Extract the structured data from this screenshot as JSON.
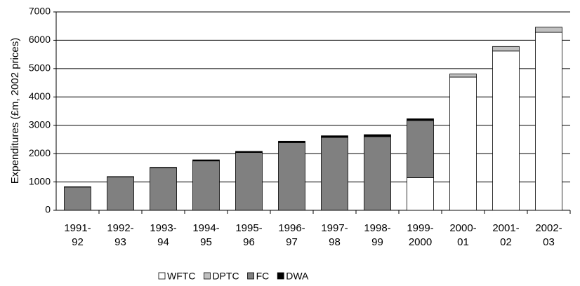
{
  "chart_data": {
    "type": "stacked-bar",
    "y_label": "Expenditures (£m, 2002 prices)",
    "categories": [
      "1991-\n92",
      "1992-\n93",
      "1993-\n94",
      "1994-\n95",
      "1995-\n96",
      "1996-\n97",
      "1997-\n98",
      "1998-\n99",
      "1999-\n2000",
      "2000-\n01",
      "2001-\n02",
      "2002-\n03"
    ],
    "series": [
      {
        "name": "WFTC",
        "color": "#ffffff",
        "values": [
          0,
          0,
          0,
          0,
          0,
          0,
          0,
          0,
          1150,
          4700,
          5620,
          6280
        ]
      },
      {
        "name": "DPTC",
        "color": "#c0c0c0",
        "values": [
          0,
          0,
          0,
          0,
          0,
          0,
          0,
          0,
          0,
          110,
          160,
          180
        ]
      },
      {
        "name": "FC",
        "color": "#808080",
        "values": [
          820,
          1180,
          1500,
          1740,
          2040,
          2390,
          2570,
          2600,
          2020,
          0,
          0,
          0
        ]
      },
      {
        "name": "DWA",
        "color": "#000000",
        "values": [
          10,
          10,
          15,
          40,
          40,
          50,
          60,
          70,
          60,
          0,
          0,
          0
        ]
      }
    ],
    "ylim": [
      0,
      7000
    ],
    "yticks": [
      0,
      1000,
      2000,
      3000,
      4000,
      5000,
      6000,
      7000
    ],
    "grid": true
  }
}
